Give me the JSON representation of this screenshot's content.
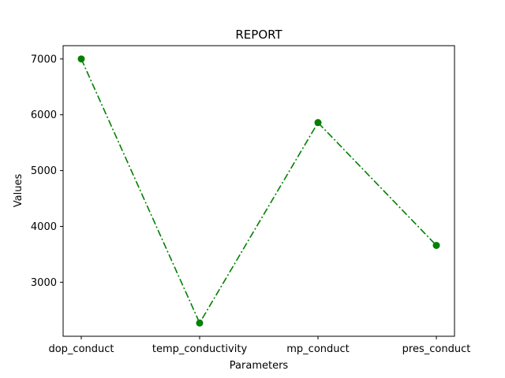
{
  "chart_data": {
    "type": "line",
    "title": "REPORT",
    "xlabel": "Parameters",
    "ylabel": "Values",
    "categories": [
      "dop_conduct",
      "temp_conductivity",
      "mp_conduct",
      "pres_conduct"
    ],
    "series": [
      {
        "values": [
          7000,
          2270,
          5860,
          3660
        ],
        "color": "#008000",
        "line_style": "dash-dot",
        "marker": "circle"
      }
    ],
    "yticks": [
      3000,
      4000,
      5000,
      6000,
      7000
    ],
    "ylim": [
      2032,
      7238
    ],
    "grid": false,
    "legend": "none"
  }
}
